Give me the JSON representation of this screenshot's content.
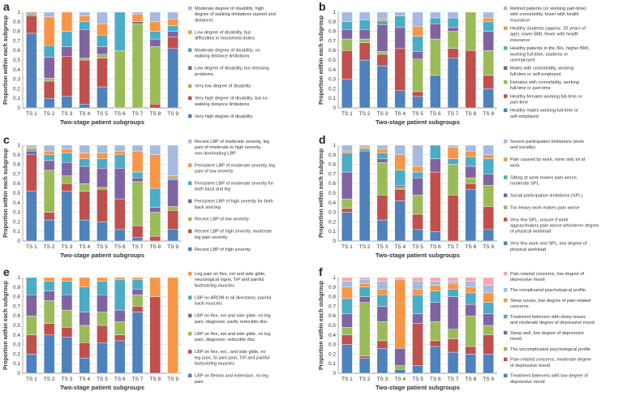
{
  "colors": {
    "blue": "#4f81bd",
    "red": "#c0504d",
    "green": "#9bbb59",
    "purple": "#8064a2",
    "teal": "#4bacc6",
    "orange": "#f79646",
    "lightblue": "#a6b9de",
    "pink": "#f4a7b2",
    "navy": "#1f3864"
  },
  "chart_data": [
    {
      "panel": "a",
      "type": "bar",
      "stacked": true,
      "title": "",
      "xlabel": "Two-stage patient subgroups",
      "ylabel": "Proportion within each subgroup",
      "ylim": [
        0,
        1
      ],
      "yticks": [
        "0",
        "0.1",
        "0.2",
        "0.3",
        "0.4",
        "0.5",
        "0.6",
        "0.7",
        "0.8",
        "0.9",
        "1"
      ],
      "categories": [
        "TS 1",
        "TS 2",
        "TS 3",
        "TS 4",
        "TS 5",
        "TS 6",
        "TS 7",
        "TS 8",
        "TS 9"
      ],
      "series": [
        {
          "name": "Very high degree of disability",
          "color": "blue",
          "values": [
            0.78,
            0.1,
            0.12,
            0.04,
            0.22,
            0.0,
            0.0,
            0.0,
            0.62
          ]
        },
        {
          "name": "Very high degree of disability, but no walking distance limitations",
          "color": "red",
          "values": [
            0.18,
            0.18,
            0.42,
            0.46,
            0.3,
            0.0,
            0.0,
            0.04,
            0.12
          ]
        },
        {
          "name": "Very low degree of disability",
          "color": "green",
          "values": [
            0.0,
            0.03,
            0.0,
            0.02,
            0.04,
            0.6,
            0.88,
            0.6,
            0.0
          ]
        },
        {
          "name": "Low degree of disability, but dressing problems",
          "color": "purple",
          "values": [
            0.0,
            0.22,
            0.1,
            0.3,
            0.08,
            0.0,
            0.02,
            0.08,
            0.06
          ]
        },
        {
          "name": "Moderate degree of disability, no walking distance limitations",
          "color": "teal",
          "values": [
            0.02,
            0.12,
            0.16,
            0.08,
            0.12,
            0.4,
            0.0,
            0.08,
            0.06
          ]
        },
        {
          "name": "Low degree of disability, but difficulties in household duties",
          "color": "orange",
          "values": [
            0.02,
            0.3,
            0.2,
            0.06,
            0.12,
            0.0,
            0.08,
            0.1,
            0.07
          ]
        },
        {
          "name": "Moderate degree of disability, high degree of walking limitations (speed and distance)",
          "color": "lightblue",
          "values": [
            0.0,
            0.05,
            0.0,
            0.04,
            0.12,
            0.0,
            0.02,
            0.1,
            0.07
          ]
        }
      ]
    },
    {
      "panel": "b",
      "type": "bar",
      "stacked": true,
      "title": "",
      "xlabel": "Two-stage patient subgroups",
      "ylabel": "Proportion within each subgroup",
      "ylim": [
        0,
        1
      ],
      "yticks": [
        "0",
        "0.1",
        "0.2",
        "0.3",
        "0.4",
        "0.5",
        "0.6",
        "0.7",
        "0.8",
        "0.9",
        "1"
      ],
      "categories": [
        "TS 1",
        "TS 2",
        "TS 3",
        "TS 4",
        "TS 5",
        "TS 6",
        "TS 7",
        "TS 8",
        "TS 9"
      ],
      "series": [
        {
          "name": "Healthy males working full-time or self-employed",
          "color": "blue",
          "values": [
            0.3,
            0.5,
            0.44,
            0.18,
            0.12,
            0.34,
            0.52,
            0.0,
            0.2
          ]
        },
        {
          "name": "Healthy females working full-time or part-time",
          "color": "red",
          "values": [
            0.3,
            0.18,
            0.12,
            0.44,
            0.05,
            0.0,
            0.1,
            0.6,
            0.14
          ]
        },
        {
          "name": "Females with comorbidity, working full-time or part-time",
          "color": "green",
          "values": [
            0.12,
            0.04,
            0.03,
            0.0,
            0.34,
            0.38,
            0.18,
            0.4,
            0.26
          ]
        },
        {
          "name": "Males with comorbidity, working full-time or self-employed",
          "color": "purple",
          "values": [
            0.1,
            0.1,
            0.28,
            0.22,
            0.08,
            0.16,
            0.04,
            0.0,
            0.2
          ]
        },
        {
          "name": "Healthy patients in the 30s, higher BMI, working full-time, students or unemployed",
          "color": "teal",
          "values": [
            0.08,
            0.1,
            0.04,
            0.12,
            0.16,
            0.06,
            0.1,
            0.0,
            0.1
          ]
        },
        {
          "name": "Healthy students (approx. 25 years of age), lower BMI, fewer with health insurance",
          "color": "orange",
          "values": [
            0.0,
            0.0,
            0.02,
            0.0,
            0.1,
            0.0,
            0.0,
            0.0,
            0.04
          ]
        },
        {
          "name": "Retired patients (or working part-time) with comorbidity, fewer with health insurance",
          "color": "lightblue",
          "values": [
            0.1,
            0.08,
            0.07,
            0.04,
            0.15,
            0.06,
            0.06,
            0.0,
            0.06
          ]
        }
      ]
    },
    {
      "panel": "c",
      "type": "bar",
      "stacked": true,
      "title": "",
      "xlabel": "Two-stage patient subgroups",
      "ylabel": "Proportion within each subgroup",
      "ylim": [
        0,
        1
      ],
      "yticks": [
        "0",
        "0.1",
        "0.2",
        "0.3",
        "0.4",
        "0.5",
        "0.6",
        "0.7",
        "0.8",
        "0.9",
        "1"
      ],
      "categories": [
        "TS 1",
        "TS 2",
        "TS 3",
        "TS 4",
        "TS 5",
        "TS 6",
        "TS 7",
        "TS 8",
        "TS 9"
      ],
      "series": [
        {
          "name": "Recent LBP of high severity",
          "color": "blue",
          "values": [
            0.52,
            0.22,
            0.52,
            0.22,
            0.2,
            0.12,
            0.04,
            0.0,
            0.12
          ]
        },
        {
          "name": "Recent LBP of high severity, moderate leg pain severity",
          "color": "red",
          "values": [
            0.38,
            0.08,
            0.08,
            0.3,
            0.34,
            0.32,
            0.12,
            0.05,
            0.2
          ]
        },
        {
          "name": "Recent LBP of low severity",
          "color": "green",
          "values": [
            0.0,
            0.44,
            0.08,
            0.08,
            0.02,
            0.0,
            0.46,
            0.25,
            0.04
          ]
        },
        {
          "name": "Persistent LBP of high severity for both back and leg",
          "color": "purple",
          "values": [
            0.04,
            0.1,
            0.14,
            0.18,
            0.2,
            0.32,
            0.04,
            0.05,
            0.28
          ]
        },
        {
          "name": "Persistent LBP of moderate severity for both back and leg",
          "color": "teal",
          "values": [
            0.02,
            0.06,
            0.1,
            0.08,
            0.1,
            0.14,
            0.06,
            0.2,
            0.02
          ]
        },
        {
          "name": "Persistent LBP of moderate severity, leg pain of low severity",
          "color": "orange",
          "values": [
            0.02,
            0.04,
            0.04,
            0.06,
            0.06,
            0.04,
            0.22,
            0.35,
            0.02
          ]
        },
        {
          "name": "Recent LBP of moderate severity, leg pain of moderate to high severity, non-dominating LBP",
          "color": "lightblue",
          "values": [
            0.02,
            0.06,
            0.04,
            0.08,
            0.08,
            0.06,
            0.06,
            0.1,
            0.32
          ]
        }
      ]
    },
    {
      "panel": "d",
      "type": "bar",
      "stacked": true,
      "title": "",
      "xlabel": "Two-stage patient subgroups",
      "ylabel": "Proportion within each subgroup",
      "ylim": [
        0,
        1
      ],
      "yticks": [
        "0",
        "0.1",
        "0.2",
        "0.3",
        "0.4",
        "0.5",
        "0.6",
        "0.7",
        "0.8",
        "0.9",
        "1"
      ],
      "categories": [
        "TS 1",
        "TS 2",
        "TS 3",
        "TS 4",
        "TS 5",
        "TS 6",
        "TS 7",
        "TS 8",
        "TS 9"
      ],
      "series": [
        {
          "name": "Very few work and SPL, low degree of physical workload",
          "color": "blue",
          "values": [
            0.3,
            0.94,
            0.22,
            0.42,
            0.12,
            0.1,
            0.0,
            0.54,
            0.12
          ]
        },
        {
          "name": "Very few SPL, unsure if work aggrav/makes pain worse whichever degree of physical workload",
          "color": "red",
          "values": [
            0.04,
            0.0,
            0.26,
            0.12,
            0.16,
            0.62,
            0.48,
            0.06,
            0.24
          ]
        },
        {
          "name": "Too heavy work makes pain worse",
          "color": "green",
          "values": [
            0.1,
            0.0,
            0.34,
            0.02,
            0.2,
            0.0,
            0.32,
            0.06,
            0.22
          ]
        },
        {
          "name": "Social participation limitations (SPL)",
          "color": "purple",
          "values": [
            0.28,
            0.0,
            0.04,
            0.02,
            0.18,
            0.14,
            0.0,
            0.12,
            0.12
          ]
        },
        {
          "name": "Sitting at work makes pain worse, moderate SPL",
          "color": "teal",
          "values": [
            0.2,
            0.02,
            0.06,
            0.16,
            0.06,
            0.14,
            0.06,
            0.1,
            0.16
          ]
        },
        {
          "name": "Pain caused by work, none only sit at work",
          "color": "orange",
          "values": [
            0.02,
            0.02,
            0.04,
            0.16,
            0.06,
            0.0,
            0.12,
            0.06,
            0.04
          ]
        },
        {
          "name": "Severe participation limitations (work and socially)",
          "color": "lightblue",
          "values": [
            0.06,
            0.02,
            0.04,
            0.1,
            0.22,
            0.0,
            0.02,
            0.06,
            0.1
          ]
        }
      ]
    },
    {
      "panel": "e",
      "type": "bar",
      "stacked": true,
      "title": "",
      "xlabel": "Two-stage patient subgroups",
      "ylabel": "Proportion within each subgroup",
      "ylim": [
        0,
        1
      ],
      "yticks": [
        "0",
        "0.1",
        "0.2",
        "0.3",
        "0.4",
        "0.5",
        "0.6",
        "0.7",
        "0.8",
        "0.9",
        "1"
      ],
      "categories": [
        "TS 1",
        "TS 2",
        "TS 3",
        "TS 4",
        "TS 5",
        "TS 6",
        "TS 7",
        "TS 8",
        "TS 9"
      ],
      "series": [
        {
          "name": "LBP on flexion and extension, no leg pain",
          "color": "blue",
          "values": [
            0.2,
            0.4,
            0.38,
            0.16,
            0.32,
            0.34,
            0.64,
            0.0,
            0.0
          ]
        },
        {
          "name": "LBP on flex, ext., and side glide, no leg pain, SI joint pain, TrP and painful buttock/leg muscles",
          "color": "red",
          "values": [
            0.2,
            0.12,
            0.1,
            0.16,
            0.18,
            0.06,
            0.06,
            0.8,
            0.0
          ]
        },
        {
          "name": "LBP on flex, ext and side glide, no leg pain, diagnosis: reducible disc",
          "color": "green",
          "values": [
            0.2,
            0.24,
            0.18,
            0.18,
            0.14,
            0.14,
            0.12,
            0.0,
            0.0
          ]
        },
        {
          "name": "LBP on flex, ext and side glide, no leg pain, diagnosis: partly reducible disc",
          "color": "purple",
          "values": [
            0.22,
            0.1,
            0.16,
            0.14,
            0.18,
            0.12,
            0.06,
            0.0,
            0.0
          ]
        },
        {
          "name": "LBP on AROM in all directions, painful back muscles",
          "color": "teal",
          "values": [
            0.18,
            0.1,
            0.14,
            0.26,
            0.14,
            0.32,
            0.1,
            0.0,
            0.0
          ]
        },
        {
          "name": "Leg pain on flex, ext and side glide, neurological signs, TrP and painful buttock/leg muscles",
          "color": "orange",
          "values": [
            0.0,
            0.04,
            0.04,
            0.1,
            0.04,
            0.02,
            0.02,
            0.2,
            1.0
          ]
        }
      ]
    },
    {
      "panel": "f",
      "type": "bar",
      "stacked": true,
      "title": "",
      "xlabel": "Two-stage patient subgroups",
      "ylabel": "Proportion within each subgroup",
      "ylim": [
        0,
        1
      ],
      "yticks": [
        "0",
        "0.1",
        "0.2",
        "0.3",
        "0.4",
        "0.5",
        "0.6",
        "0.7",
        "0.8",
        "0.9",
        "1"
      ],
      "categories": [
        "TS 1",
        "TS 2",
        "TS 3",
        "TS 4",
        "TS 5",
        "TS 6",
        "TS 7",
        "TS 8",
        "TS 9"
      ],
      "series": [
        {
          "name": "Treatment believers with low degree of depressive mood",
          "color": "blue",
          "values": [
            0.3,
            0.16,
            0.26,
            0.04,
            0.08,
            0.28,
            0.22,
            0.2,
            0.2
          ]
        },
        {
          "name": "Pain-related concerns, moderate degree of depressive mood",
          "color": "red",
          "values": [
            0.1,
            0.02,
            0.08,
            0.0,
            0.44,
            0.06,
            0.14,
            0.08,
            0.2
          ]
        },
        {
          "name": "The uncomplicated psychological profile",
          "color": "green",
          "values": [
            0.08,
            0.56,
            0.2,
            0.04,
            0.0,
            0.2,
            0.1,
            0.32,
            0.1
          ]
        },
        {
          "name": "Sleep well, low degree of depressive mood",
          "color": "purple",
          "values": [
            0.14,
            0.06,
            0.16,
            0.18,
            0.1,
            0.2,
            0.34,
            0.12,
            0.12
          ]
        },
        {
          "name": "Treatment believers with sleep issues and moderate degree of depressive mood",
          "color": "teal",
          "values": [
            0.16,
            0.1,
            0.12,
            0.0,
            0.2,
            0.12,
            0.08,
            0.12,
            0.12
          ]
        },
        {
          "name": "Sleep issues, low degree of pain-related concerns",
          "color": "orange",
          "values": [
            0.12,
            0.04,
            0.06,
            0.72,
            0.06,
            0.06,
            0.06,
            0.06,
            0.1
          ]
        },
        {
          "name": "The complicated psychological profile",
          "color": "lightblue",
          "values": [
            0.06,
            0.04,
            0.08,
            0.0,
            0.08,
            0.04,
            0.02,
            0.06,
            0.08
          ]
        },
        {
          "name": "Pain-related concerns, low degree of depressive mood",
          "color": "pink",
          "values": [
            0.04,
            0.02,
            0.04,
            0.02,
            0.04,
            0.04,
            0.04,
            0.04,
            0.08
          ]
        }
      ]
    }
  ]
}
